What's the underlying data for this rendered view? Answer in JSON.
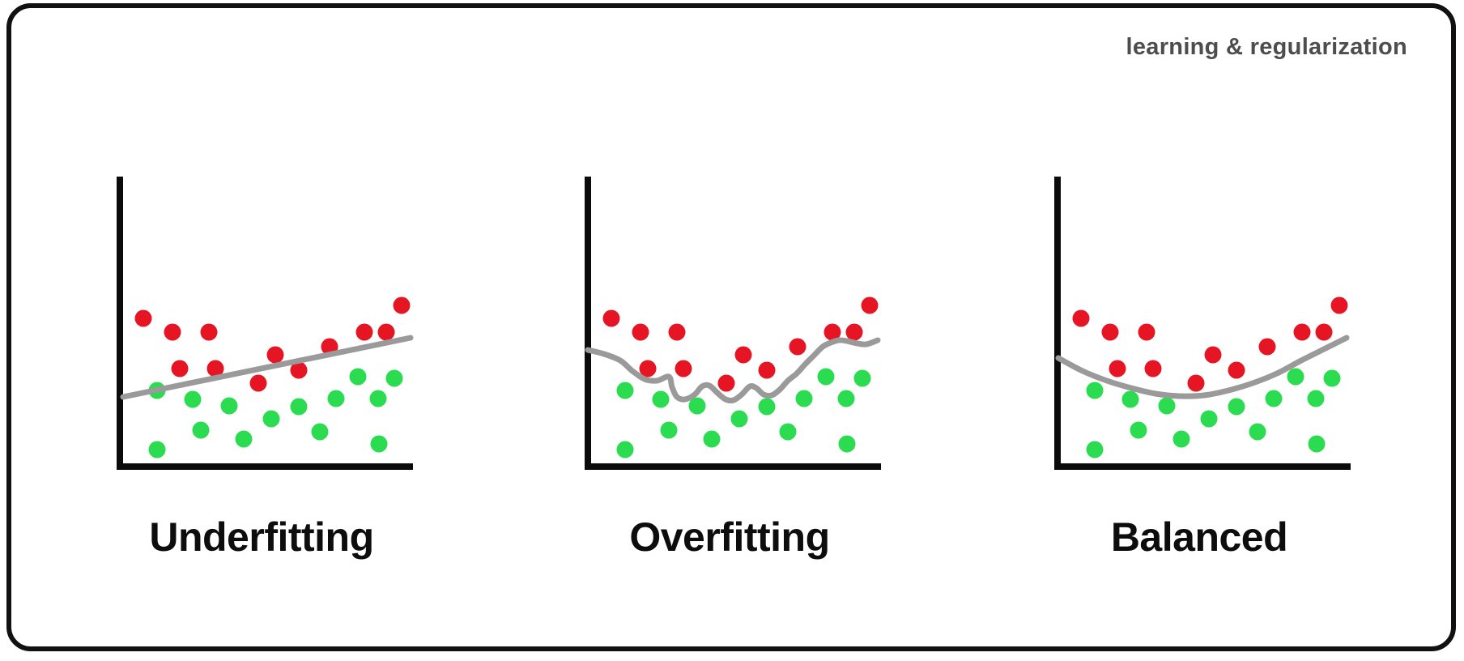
{
  "header": {
    "title": "learning & regularization",
    "color": "#4d4d4d"
  },
  "frame": {
    "border_color": "#111111",
    "background": "#ffffff"
  },
  "panels": [
    {
      "label": "Underfitting"
    },
    {
      "label": "Overfitting"
    },
    {
      "label": "Balanced"
    }
  ],
  "colors": {
    "red_class": "#e51523",
    "green_class": "#2bdb50",
    "boundary_gray": "#9a9a9a",
    "axis_black": "#0b0b0b"
  },
  "chart_data": [
    {
      "type": "scatter",
      "title": "Underfitting",
      "xlabel": "",
      "ylabel": "",
      "axes": {
        "x_range": [
          0,
          360
        ],
        "y_range": [
          0,
          360
        ],
        "ticks": "none",
        "grid": false
      },
      "legend": "none",
      "series": [
        {
          "name": "class-red",
          "color": "#e51523",
          "points": [
            [
              29,
              175
            ],
            [
              65,
              192
            ],
            [
              110,
              192
            ],
            [
              74,
              237
            ],
            [
              118,
              237
            ],
            [
              171,
              255
            ],
            [
              192,
              220
            ],
            [
              221,
              239
            ],
            [
              259,
              210
            ],
            [
              302,
              192
            ],
            [
              329,
              192
            ],
            [
              348,
              159
            ]
          ]
        },
        {
          "name": "class-green",
          "color": "#2bdb50",
          "points": [
            [
              46,
              264
            ],
            [
              90,
              275
            ],
            [
              135,
              283
            ],
            [
              187,
              299
            ],
            [
              221,
              284
            ],
            [
              267,
              274
            ],
            [
              294,
              247
            ],
            [
              339,
              249
            ],
            [
              319,
              274
            ],
            [
              100,
              313
            ],
            [
              153,
              324
            ],
            [
              247,
              315
            ],
            [
              320,
              330
            ],
            [
              46,
              337
            ]
          ]
        }
      ],
      "boundary": {
        "name": "straight-line-boundary",
        "color": "#9a9a9a",
        "points": [
          [
            4,
            272
          ],
          [
            359,
            199
          ]
        ]
      }
    },
    {
      "type": "scatter",
      "title": "Overfitting",
      "xlabel": "",
      "ylabel": "",
      "axes": {
        "x_range": [
          0,
          360
        ],
        "y_range": [
          0,
          360
        ],
        "ticks": "none",
        "grid": false
      },
      "legend": "none",
      "series": [
        {
          "name": "class-red",
          "color": "#e51523",
          "points": [
            [
              29,
              175
            ],
            [
              65,
              192
            ],
            [
              110,
              192
            ],
            [
              74,
              237
            ],
            [
              118,
              237
            ],
            [
              171,
              255
            ],
            [
              192,
              220
            ],
            [
              221,
              239
            ],
            [
              259,
              210
            ],
            [
              302,
              192
            ],
            [
              329,
              192
            ],
            [
              348,
              159
            ]
          ]
        },
        {
          "name": "class-green",
          "color": "#2bdb50",
          "points": [
            [
              46,
              264
            ],
            [
              90,
              275
            ],
            [
              135,
              283
            ],
            [
              187,
              299
            ],
            [
              221,
              284
            ],
            [
              267,
              274
            ],
            [
              294,
              247
            ],
            [
              339,
              249
            ],
            [
              319,
              274
            ],
            [
              100,
              313
            ],
            [
              153,
              324
            ],
            [
              247,
              315
            ],
            [
              320,
              330
            ],
            [
              46,
              337
            ]
          ]
        }
      ],
      "boundary": {
        "name": "wiggly-curve-boundary",
        "color": "#9a9a9a",
        "points": [
          [
            0,
            214
          ],
          [
            20,
            219
          ],
          [
            40,
            227
          ],
          [
            55,
            240
          ],
          [
            70,
            250
          ],
          [
            85,
            252
          ],
          [
            100,
            247
          ],
          [
            104,
            260
          ],
          [
            110,
            272
          ],
          [
            120,
            275
          ],
          [
            132,
            269
          ],
          [
            141,
            259
          ],
          [
            150,
            258
          ],
          [
            160,
            267
          ],
          [
            170,
            275
          ],
          [
            180,
            276
          ],
          [
            190,
            269
          ],
          [
            200,
            259
          ],
          [
            208,
            261
          ],
          [
            217,
            269
          ],
          [
            227,
            270
          ],
          [
            237,
            263
          ],
          [
            247,
            252
          ],
          [
            258,
            243
          ],
          [
            268,
            232
          ],
          [
            278,
            222
          ],
          [
            290,
            210
          ],
          [
            300,
            205
          ],
          [
            310,
            202
          ],
          [
            320,
            203
          ],
          [
            333,
            206
          ],
          [
            344,
            207
          ],
          [
            358,
            202
          ]
        ]
      }
    },
    {
      "type": "scatter",
      "title": "Balanced",
      "xlabel": "",
      "ylabel": "",
      "axes": {
        "x_range": [
          0,
          360
        ],
        "y_range": [
          0,
          360
        ],
        "ticks": "none",
        "grid": false
      },
      "legend": "none",
      "series": [
        {
          "name": "class-red",
          "color": "#e51523",
          "points": [
            [
              29,
              175
            ],
            [
              65,
              192
            ],
            [
              110,
              192
            ],
            [
              74,
              237
            ],
            [
              118,
              237
            ],
            [
              171,
              255
            ],
            [
              192,
              220
            ],
            [
              221,
              239
            ],
            [
              259,
              210
            ],
            [
              302,
              192
            ],
            [
              329,
              192
            ],
            [
              348,
              159
            ]
          ]
        },
        {
          "name": "class-green",
          "color": "#2bdb50",
          "points": [
            [
              46,
              264
            ],
            [
              90,
              275
            ],
            [
              135,
              283
            ],
            [
              187,
              299
            ],
            [
              221,
              284
            ],
            [
              267,
              274
            ],
            [
              294,
              247
            ],
            [
              339,
              249
            ],
            [
              319,
              274
            ],
            [
              100,
              313
            ],
            [
              153,
              324
            ],
            [
              247,
              315
            ],
            [
              320,
              330
            ],
            [
              46,
              337
            ]
          ]
        }
      ],
      "boundary": {
        "name": "smooth-curve-boundary",
        "color": "#9a9a9a",
        "points": [
          [
            1,
            224
          ],
          [
            31,
            240
          ],
          [
            61,
            252
          ],
          [
            91,
            261
          ],
          [
            121,
            268
          ],
          [
            151,
            271
          ],
          [
            181,
            270
          ],
          [
            211,
            264
          ],
          [
            241,
            255
          ],
          [
            271,
            243
          ],
          [
            301,
            227
          ],
          [
            331,
            212
          ],
          [
            357,
            199
          ]
        ]
      }
    }
  ]
}
